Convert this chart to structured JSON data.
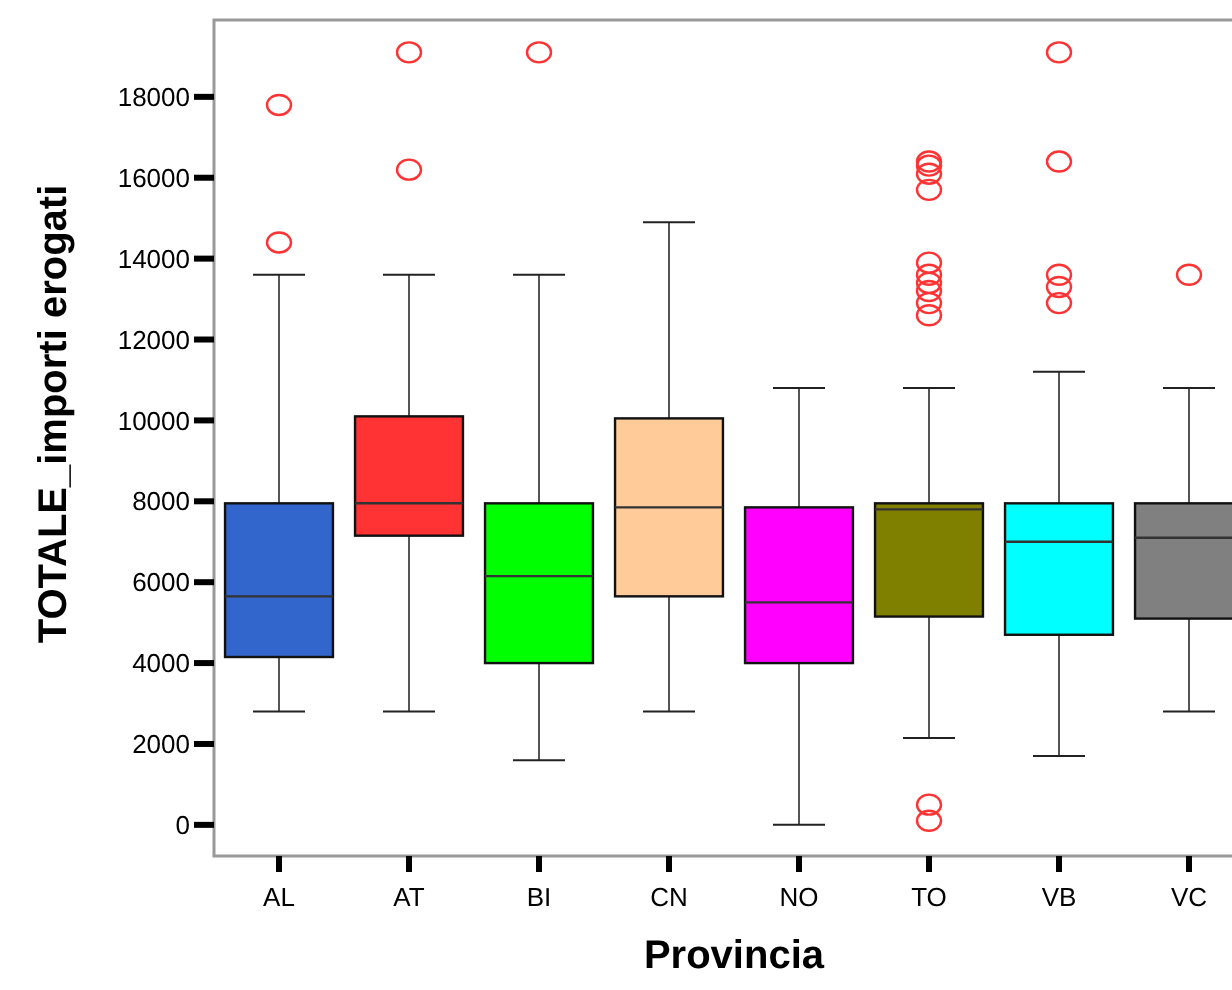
{
  "chart_data": {
    "type": "box",
    "xlabel": "Provincia",
    "ylabel": "TOTALE_importi erogati",
    "categories": [
      "AL",
      "AT",
      "BI",
      "CN",
      "NO",
      "TO",
      "VB",
      "VC"
    ],
    "colors": [
      "#3366cc",
      "#ff3333",
      "#00ff00",
      "#ffcc99",
      "#ff00ff",
      "#808000",
      "#00ffff",
      "#808080"
    ],
    "boxes": [
      {
        "low": 2800,
        "q1": 4150,
        "median": 5650,
        "q3": 7950,
        "high": 13600,
        "outliers": [
          14400,
          17800
        ]
      },
      {
        "low": 2800,
        "q1": 7150,
        "median": 7950,
        "q3": 10100,
        "high": 13600,
        "outliers": [
          16200,
          19100
        ]
      },
      {
        "low": 1600,
        "q1": 4000,
        "median": 6150,
        "q3": 7950,
        "high": 13600,
        "outliers": [
          19100
        ]
      },
      {
        "low": 2800,
        "q1": 5650,
        "median": 7850,
        "q3": 10050,
        "high": 14900
      },
      {
        "low": 0,
        "q1": 4000,
        "median": 5500,
        "q3": 7850,
        "high": 10800
      },
      {
        "low": 2150,
        "q1": 5150,
        "median": 7800,
        "q3": 7950,
        "high": 10800,
        "outliers": [
          16400,
          16300,
          16100,
          15700,
          13900,
          13600,
          13400,
          13200,
          12900,
          12600,
          500,
          100
        ]
      },
      {
        "low": 1700,
        "q1": 4700,
        "median": 7000,
        "q3": 7950,
        "high": 11200,
        "outliers": [
          19100,
          16400,
          13600,
          13300,
          12900
        ]
      },
      {
        "low": 2800,
        "q1": 5100,
        "median": 7100,
        "q3": 7950,
        "high": 10800,
        "outliers": [
          13600
        ]
      }
    ],
    "ylim": [
      -770,
      19900
    ],
    "yticks": [
      0,
      2000,
      4000,
      6000,
      8000,
      10000,
      12000,
      14000,
      16000,
      18000
    ],
    "grid": false
  }
}
